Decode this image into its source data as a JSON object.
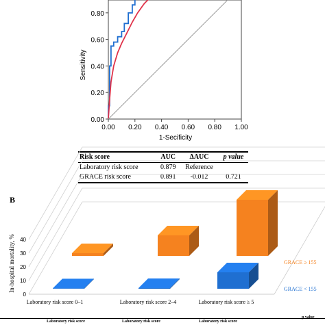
{
  "chart_data": [
    {
      "type": "line",
      "title": "",
      "xlabel": "1-Secificity",
      "ylabel": "Sensitivity",
      "xlim": [
        0,
        1
      ],
      "ylim": [
        0,
        0.9
      ],
      "xticks": [
        "0.00",
        "0.20",
        "0.40",
        "0.60",
        "0.80",
        "1.00"
      ],
      "yticks": [
        "0.00",
        "0.20",
        "0.40",
        "0.60",
        "0.80"
      ],
      "grid": false,
      "series": [
        {
          "color": "#1f6fd1",
          "points": [
            [
              0,
              0
            ],
            [
              0,
              0.1
            ],
            [
              0.01,
              0.1
            ],
            [
              0.01,
              0.4
            ],
            [
              0.02,
              0.4
            ],
            [
              0.02,
              0.55
            ],
            [
              0.04,
              0.55
            ],
            [
              0.04,
              0.58
            ],
            [
              0.07,
              0.58
            ],
            [
              0.07,
              0.62
            ],
            [
              0.1,
              0.62
            ],
            [
              0.1,
              0.66
            ],
            [
              0.12,
              0.66
            ],
            [
              0.12,
              0.72
            ],
            [
              0.15,
              0.72
            ],
            [
              0.15,
              0.8
            ],
            [
              0.18,
              0.8
            ],
            [
              0.18,
              0.86
            ],
            [
              0.2,
              0.86
            ],
            [
              0.2,
              0.9
            ]
          ]
        },
        {
          "color": "#e0334a",
          "points": [
            [
              0,
              0
            ],
            [
              0.01,
              0.15
            ],
            [
              0.02,
              0.28
            ],
            [
              0.04,
              0.4
            ],
            [
              0.07,
              0.5
            ],
            [
              0.1,
              0.57
            ],
            [
              0.14,
              0.65
            ],
            [
              0.18,
              0.73
            ],
            [
              0.22,
              0.8
            ],
            [
              0.27,
              0.87
            ],
            [
              0.3,
              0.9
            ]
          ]
        },
        {
          "color": "#9a9a9a",
          "points": [
            [
              0,
              0
            ],
            [
              1,
              1
            ]
          ]
        }
      ]
    },
    {
      "type": "bar",
      "title": "",
      "xlabel": "",
      "ylabel": "In-hospital mortality, %",
      "ylim": [
        0,
        50
      ],
      "yticks": [
        "0",
        "10",
        "20",
        "30",
        "40"
      ],
      "categories": [
        "Laboratory risk score 0–1",
        "Laboratory risk score 2–4",
        "Laboratory risk score ≥ 5"
      ],
      "series": [
        {
          "name": "GRACE < 155",
          "color": "#1f6fd1",
          "values": [
            0.3,
            0.5,
            12
          ]
        },
        {
          "name": "GRACE ≥ 155",
          "color": "#f5821f",
          "values": [
            2,
            15,
            41
          ]
        }
      ]
    }
  ],
  "table": {
    "headers": [
      "Risk score",
      "AUC",
      "ΔAUC",
      "p value"
    ],
    "rows": [
      [
        "Laboratory risk score",
        "0.879",
        "Reference",
        ""
      ],
      [
        "GRACE risk score",
        "0.891",
        "-0.012",
        "0.721"
      ]
    ]
  },
  "panel_b_label": "B",
  "bottom_header": {
    "col1": "Laboratory risk score",
    "col2": "Laboratory risk score",
    "col3": "Laboratory risk score",
    "pval": "p value"
  }
}
